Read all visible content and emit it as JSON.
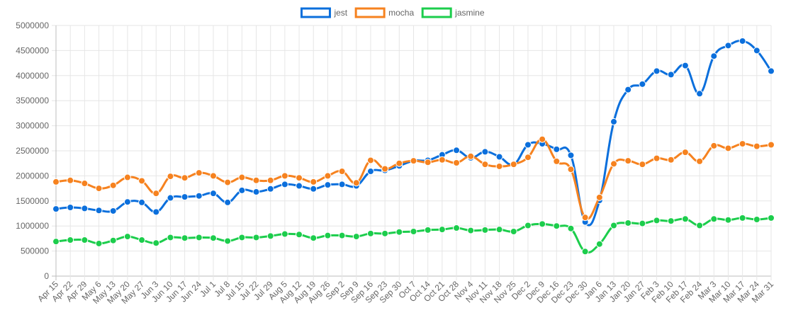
{
  "chart_data": {
    "type": "line",
    "title": "",
    "xlabel": "",
    "ylabel": "",
    "ylim": [
      0,
      5000000
    ],
    "yticks": [
      0,
      500000,
      1000000,
      1500000,
      2000000,
      2500000,
      3000000,
      3500000,
      4000000,
      4500000,
      5000000
    ],
    "ytick_labels": [
      "0",
      "500000",
      "1000000",
      "1500000",
      "2000000",
      "2500000",
      "3000000",
      "3500000",
      "4000000",
      "4500000",
      "5000000"
    ],
    "grid": true,
    "legend_position": "top-center",
    "categories": [
      "Apr 15",
      "Apr 22",
      "Apr 29",
      "May 6",
      "May 13",
      "May 20",
      "May 27",
      "Jun 3",
      "Jun 10",
      "Jun 17",
      "Jun 24",
      "Jul 1",
      "Jul 8",
      "Jul 15",
      "Jul 22",
      "Jul 29",
      "Aug 5",
      "Aug 12",
      "Aug 19",
      "Aug 26",
      "Sep 2",
      "Sep 9",
      "Sep 16",
      "Sep 23",
      "Sep 30",
      "Oct 7",
      "Oct 14",
      "Oct 21",
      "Oct 28",
      "Nov 4",
      "Nov 11",
      "Nov 18",
      "Nov 25",
      "Dec 2",
      "Dec 9",
      "Dec 16",
      "Dec 23",
      "Dec 30",
      "Jan 6",
      "Jan 13",
      "Jan 20",
      "Jan 27",
      "Feb 3",
      "Feb 10",
      "Feb 17",
      "Feb 24",
      "Mar 3",
      "Mar 10",
      "Mar 17",
      "Mar 24",
      "Mar 31"
    ],
    "series": [
      {
        "name": "jest",
        "color": "#0b6fdc",
        "values": [
          1340000,
          1370000,
          1350000,
          1310000,
          1300000,
          1480000,
          1470000,
          1280000,
          1560000,
          1580000,
          1600000,
          1650000,
          1470000,
          1710000,
          1680000,
          1740000,
          1830000,
          1800000,
          1740000,
          1820000,
          1830000,
          1800000,
          2090000,
          2110000,
          2200000,
          2300000,
          2310000,
          2420000,
          2510000,
          2360000,
          2480000,
          2380000,
          2230000,
          2620000,
          2640000,
          2530000,
          2410000,
          1080000,
          1510000,
          3080000,
          3720000,
          3830000,
          4090000,
          4020000,
          4200000,
          3640000,
          4390000,
          4600000,
          4690000,
          4500000,
          4090000
        ]
      },
      {
        "name": "mocha",
        "color": "#f6821f",
        "values": [
          1880000,
          1910000,
          1850000,
          1750000,
          1810000,
          1970000,
          1900000,
          1650000,
          1990000,
          1960000,
          2060000,
          2000000,
          1870000,
          1970000,
          1910000,
          1910000,
          2000000,
          1960000,
          1880000,
          2000000,
          2090000,
          1860000,
          2310000,
          2140000,
          2250000,
          2300000,
          2270000,
          2320000,
          2260000,
          2390000,
          2230000,
          2190000,
          2230000,
          2370000,
          2730000,
          2290000,
          2130000,
          1170000,
          1570000,
          2240000,
          2300000,
          2230000,
          2350000,
          2320000,
          2470000,
          2290000,
          2600000,
          2550000,
          2640000,
          2590000,
          2620000
        ]
      },
      {
        "name": "jasmine",
        "color": "#1ccd4c",
        "values": [
          690000,
          720000,
          720000,
          650000,
          710000,
          790000,
          720000,
          660000,
          770000,
          760000,
          770000,
          760000,
          700000,
          770000,
          770000,
          800000,
          840000,
          830000,
          760000,
          810000,
          810000,
          790000,
          850000,
          850000,
          880000,
          890000,
          920000,
          930000,
          960000,
          910000,
          920000,
          930000,
          890000,
          1010000,
          1040000,
          1000000,
          950000,
          490000,
          640000,
          1010000,
          1060000,
          1050000,
          1110000,
          1100000,
          1140000,
          1010000,
          1140000,
          1120000,
          1160000,
          1130000,
          1160000
        ]
      }
    ]
  }
}
